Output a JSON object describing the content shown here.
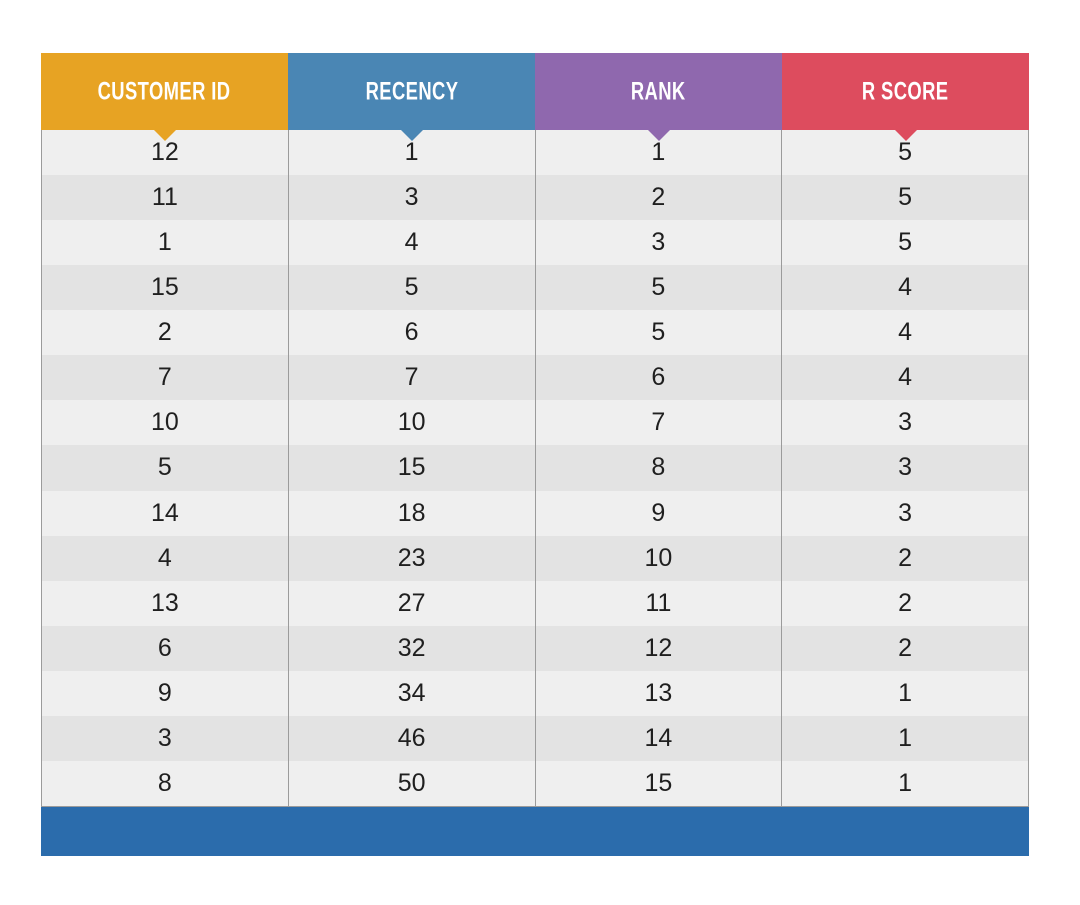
{
  "chart_data": {
    "type": "table",
    "columns": [
      {
        "label": "CUSTOMER ID",
        "color": "#E7A323"
      },
      {
        "label": "RECENCY",
        "color": "#4A86B4"
      },
      {
        "label": "RANK",
        "color": "#8F68AE"
      },
      {
        "label": "R SCORE",
        "color": "#DD4C5E"
      }
    ],
    "rows": [
      [
        12,
        1,
        1,
        5
      ],
      [
        11,
        3,
        2,
        5
      ],
      [
        1,
        4,
        3,
        5
      ],
      [
        15,
        5,
        5,
        4
      ],
      [
        2,
        6,
        5,
        4
      ],
      [
        7,
        7,
        6,
        4
      ],
      [
        10,
        10,
        7,
        3
      ],
      [
        5,
        15,
        8,
        3
      ],
      [
        14,
        18,
        9,
        3
      ],
      [
        4,
        23,
        10,
        2
      ],
      [
        13,
        27,
        11,
        2
      ],
      [
        6,
        32,
        12,
        2
      ],
      [
        9,
        34,
        13,
        1
      ],
      [
        3,
        46,
        14,
        1
      ],
      [
        8,
        50,
        15,
        1
      ]
    ],
    "row_stripe_colors": [
      "#EFEFEF",
      "#E3E3E3"
    ],
    "footer_bar_color": "#2B6CAC",
    "grid": true,
    "legend": false
  }
}
